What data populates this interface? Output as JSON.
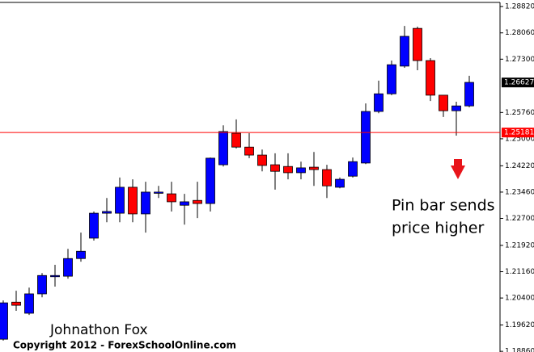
{
  "chart_data": {
    "type": "candlestick",
    "open": [
      1.1921,
      1.2028,
      1.1996,
      1.2052,
      1.2103,
      1.2103,
      1.2154,
      1.2213,
      1.2285,
      1.2285,
      1.236,
      1.2283,
      1.2343,
      1.2341,
      1.2308,
      1.2322,
      1.2313,
      1.2425,
      1.2516,
      1.2476,
      1.2453,
      1.2425,
      1.242,
      1.2402,
      1.2418,
      1.2411,
      1.236,
      1.2392,
      1.243,
      1.2579,
      1.263,
      1.271,
      1.2819,
      1.2726,
      1.2626,
      1.2581,
      1.2595
    ],
    "high": [
      1.2033,
      1.2061,
      1.207,
      1.2112,
      1.2136,
      1.2182,
      1.2229,
      1.229,
      1.2329,
      1.2388,
      1.2383,
      1.2376,
      1.2364,
      1.2376,
      1.2341,
      1.2376,
      1.2446,
      1.2539,
      1.2556,
      1.2516,
      1.2469,
      1.2458,
      1.2458,
      1.2434,
      1.2462,
      1.2425,
      1.2388,
      1.2446,
      1.2602,
      1.2668,
      1.2726,
      1.2826,
      1.2824,
      1.2733,
      1.2626,
      1.2607,
      1.2682
    ],
    "low": [
      1.1917,
      1.2003,
      1.1991,
      1.2042,
      1.2073,
      1.2096,
      1.2145,
      1.2206,
      1.2259,
      1.2259,
      1.2259,
      1.2229,
      1.2329,
      1.229,
      1.2252,
      1.2271,
      1.229,
      1.242,
      1.2472,
      1.2444,
      1.2406,
      1.2353,
      1.2383,
      1.2383,
      1.2364,
      1.2329,
      1.2357,
      1.2388,
      1.2427,
      1.2574,
      1.2626,
      1.2705,
      1.2698,
      1.2609,
      1.2563,
      1.2509,
      1.2591
    ],
    "close": [
      1.2026,
      1.2019,
      1.2052,
      1.2105,
      1.2105,
      1.2154,
      1.2175,
      1.2285,
      1.229,
      1.236,
      1.2283,
      1.2346,
      1.2346,
      1.2318,
      1.2318,
      1.2313,
      1.2444,
      1.2521,
      1.2476,
      1.2453,
      1.2423,
      1.2406,
      1.2402,
      1.2416,
      1.2411,
      1.2364,
      1.2383,
      1.2434,
      1.2579,
      1.263,
      1.2714,
      1.2796,
      1.2726,
      1.2626,
      1.2581,
      1.2595,
      1.2663
    ],
    "up_color": "#0000ff",
    "down_color": "#ff0000",
    "ylim": [
      1.1884,
      1.2901
    ],
    "yticks": [
      {
        "value": 1.2882,
        "label": "1.28820"
      },
      {
        "value": 1.2806,
        "label": "1.28060"
      },
      {
        "value": 1.273,
        "label": "1.27300"
      },
      {
        "value": 1.2576,
        "label": "1.25760"
      },
      {
        "value": 1.25,
        "label": "1.25000"
      },
      {
        "value": 1.2422,
        "label": "1.24220"
      },
      {
        "value": 1.2346,
        "label": "1.23460"
      },
      {
        "value": 1.227,
        "label": "1.22700"
      },
      {
        "value": 1.2192,
        "label": "1.21920"
      },
      {
        "value": 1.2116,
        "label": "1.21160"
      },
      {
        "value": 1.204,
        "label": "1.20400"
      },
      {
        "value": 1.1962,
        "label": "1.19620"
      },
      {
        "value": 1.1886,
        "label": "1.18860"
      }
    ],
    "price_line": {
      "value": 1.25181,
      "color": "#ff0000"
    },
    "last_price": 1.26627,
    "annotation": [
      "Pin bar sends",
      "price higher"
    ],
    "author": "Johnathon Fox",
    "copyright": "Copyright 2012 - ForexSchoolOnline.com"
  }
}
